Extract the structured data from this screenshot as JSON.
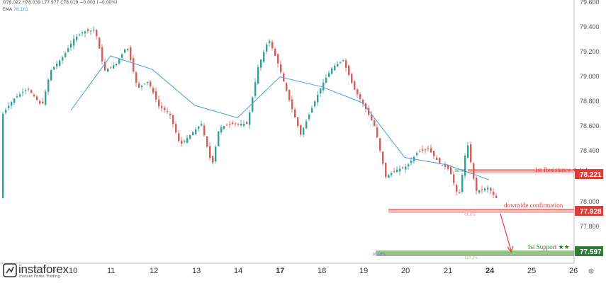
{
  "header": {
    "ohlc": "O78.022  H78.039  L77.977  C78.019  −0.003 (−0.00%)",
    "ema_label": "EMA",
    "ema_value": "78.161"
  },
  "y_axis": {
    "ticks": [
      "79.600",
      "79.400",
      "79.200",
      "79.000",
      "78.800",
      "78.600",
      "78.400",
      "78.000",
      "77.800"
    ],
    "range": [
      77.5,
      79.6
    ]
  },
  "x_axis": {
    "ticks": [
      "10",
      "11",
      "12",
      "13",
      "14",
      "17",
      "18",
      "19",
      "20",
      "21",
      "24",
      "25",
      "26"
    ]
  },
  "levels": [
    {
      "id": "resistance",
      "label": "1st Resistance ★★★",
      "price": 78.221,
      "badge": "78.221",
      "color": "#e53935"
    },
    {
      "id": "confirmation",
      "label": "downside confirmation",
      "price": 77.928,
      "badge": "77.928",
      "color": "#e53935"
    },
    {
      "id": "support",
      "label": "1st Support ★★",
      "price": 77.597,
      "badge": "77.597",
      "color": "#2e7d32"
    }
  ],
  "fib_labels": {
    "resistance_small": "50.0%",
    "confirmation_small": "61.8%",
    "support_left": "161.8%",
    "support_small": "127.2%"
  },
  "colors": {
    "up": "#26a69a",
    "down": "#ef5350",
    "ema": "#3da0e3",
    "resistance_zone": "#f4a3a3",
    "support_zone": "#7cb36b"
  },
  "chart_data": {
    "type": "line",
    "series": [
      {
        "name": "EMA",
        "points": [
          [
            "10",
            78.72
          ],
          [
            "11",
            79.16
          ],
          [
            "12",
            79.05
          ],
          [
            "13",
            78.76
          ],
          [
            "14",
            78.66
          ],
          [
            "17",
            78.99
          ],
          [
            "18",
            78.91
          ],
          [
            "19",
            78.78
          ],
          [
            "20",
            78.34
          ],
          [
            "21",
            78.28
          ],
          [
            "24",
            78.16
          ]
        ]
      }
    ],
    "ylim": [
      77.5,
      79.6
    ],
    "grid": false,
    "annotations": [
      "1st Resistance ★★★",
      "downside confirmation",
      "1st Support ★★"
    ]
  },
  "logo": {
    "name": "instaforex",
    "tagline": "Instant Forex Trading"
  }
}
